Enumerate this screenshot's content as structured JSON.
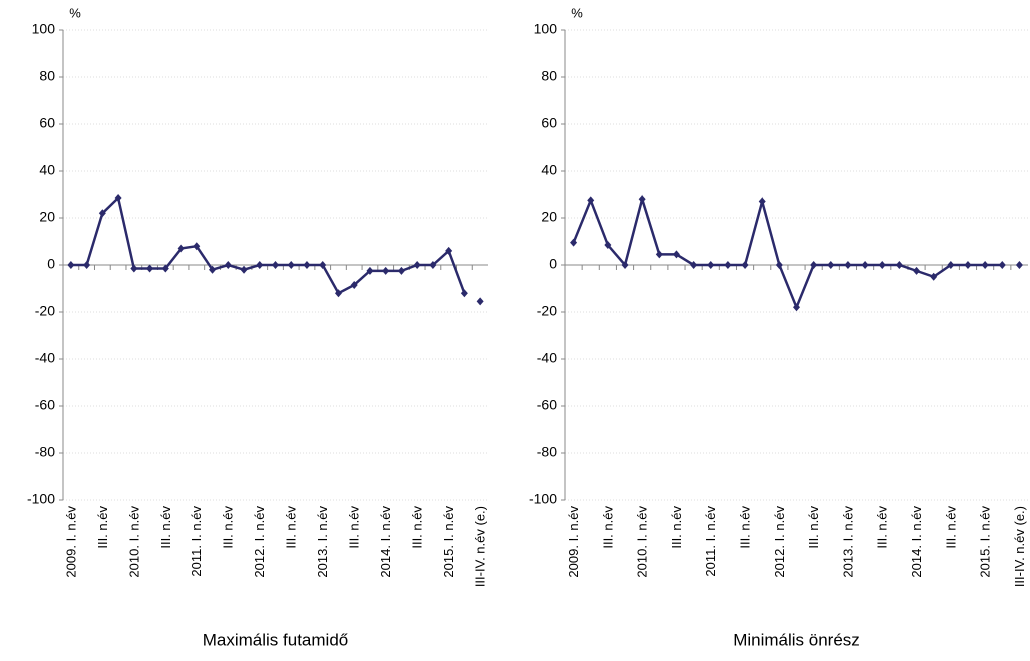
{
  "chart_data": [
    {
      "type": "line",
      "title": "Maximális futamidő",
      "y_label": "%",
      "categories": [
        "2009. I. n.év",
        null,
        "III. n.év",
        null,
        "2010. I. n.év",
        null,
        "III. n.év",
        null,
        "2011. I. n.év",
        null,
        "III. n.év",
        null,
        "2012. I. n.év",
        null,
        "III. n.év",
        null,
        "2013. I. n.év",
        null,
        "III. n.év",
        null,
        "2014. I. n.év",
        null,
        "III. n.év",
        null,
        "2015. I. n.év",
        null,
        "III-IV. n.év (e.)"
      ],
      "series": [
        {
          "color": "#2b2a6b",
          "values": [
            0,
            0,
            22,
            28.5,
            -1.5,
            -1.5,
            -1.5,
            7,
            8,
            -2,
            0,
            -2,
            0,
            0,
            0,
            0,
            0,
            -12,
            -8.5,
            -2.5,
            -2.5,
            -2.5,
            0,
            0,
            6,
            -12,
            null
          ]
        },
        {
          "color": "#2b2a6b",
          "values": [
            null,
            null,
            null,
            null,
            null,
            null,
            null,
            null,
            null,
            null,
            null,
            null,
            null,
            null,
            null,
            null,
            null,
            null,
            null,
            null,
            null,
            null,
            null,
            null,
            null,
            null,
            -15.5
          ]
        }
      ],
      "ylim": [
        -100,
        100
      ],
      "yticks": [
        -100,
        -80,
        -60,
        -40,
        -20,
        0,
        20,
        40,
        60,
        80,
        100
      ],
      "grid": true
    },
    {
      "type": "line",
      "title": "Minimális önrész",
      "y_label": "%",
      "categories": [
        "2009. I. n.év",
        null,
        "III. n.év",
        null,
        "2010. I. n.év",
        null,
        "III. n.év",
        null,
        "2011. I. n.év",
        null,
        "III. n.év",
        null,
        "2012. I. n.év",
        null,
        "III. n.év",
        null,
        "2013. I. n.év",
        null,
        "III. n.év",
        null,
        "2014. I. n.év",
        null,
        "III. n.év",
        null,
        "2015. I. n.év",
        null,
        "III-IV. n.év (e.)"
      ],
      "series": [
        {
          "color": "#2b2a6b",
          "values": [
            9.5,
            27.5,
            8.5,
            0,
            28,
            4.5,
            4.5,
            0,
            0,
            0,
            0,
            27,
            0,
            -18,
            0,
            0,
            0,
            0,
            0,
            0,
            -2.5,
            -5,
            0,
            0,
            0,
            0,
            null
          ]
        },
        {
          "color": "#2b2a6b",
          "values": [
            null,
            null,
            null,
            null,
            null,
            null,
            null,
            null,
            null,
            null,
            null,
            null,
            null,
            null,
            null,
            null,
            null,
            null,
            null,
            null,
            null,
            null,
            null,
            null,
            null,
            null,
            0
          ]
        }
      ],
      "ylim": [
        -100,
        100
      ],
      "yticks": [
        -100,
        -80,
        -60,
        -40,
        -20,
        0,
        20,
        40,
        60,
        80,
        100
      ],
      "grid": true
    }
  ]
}
